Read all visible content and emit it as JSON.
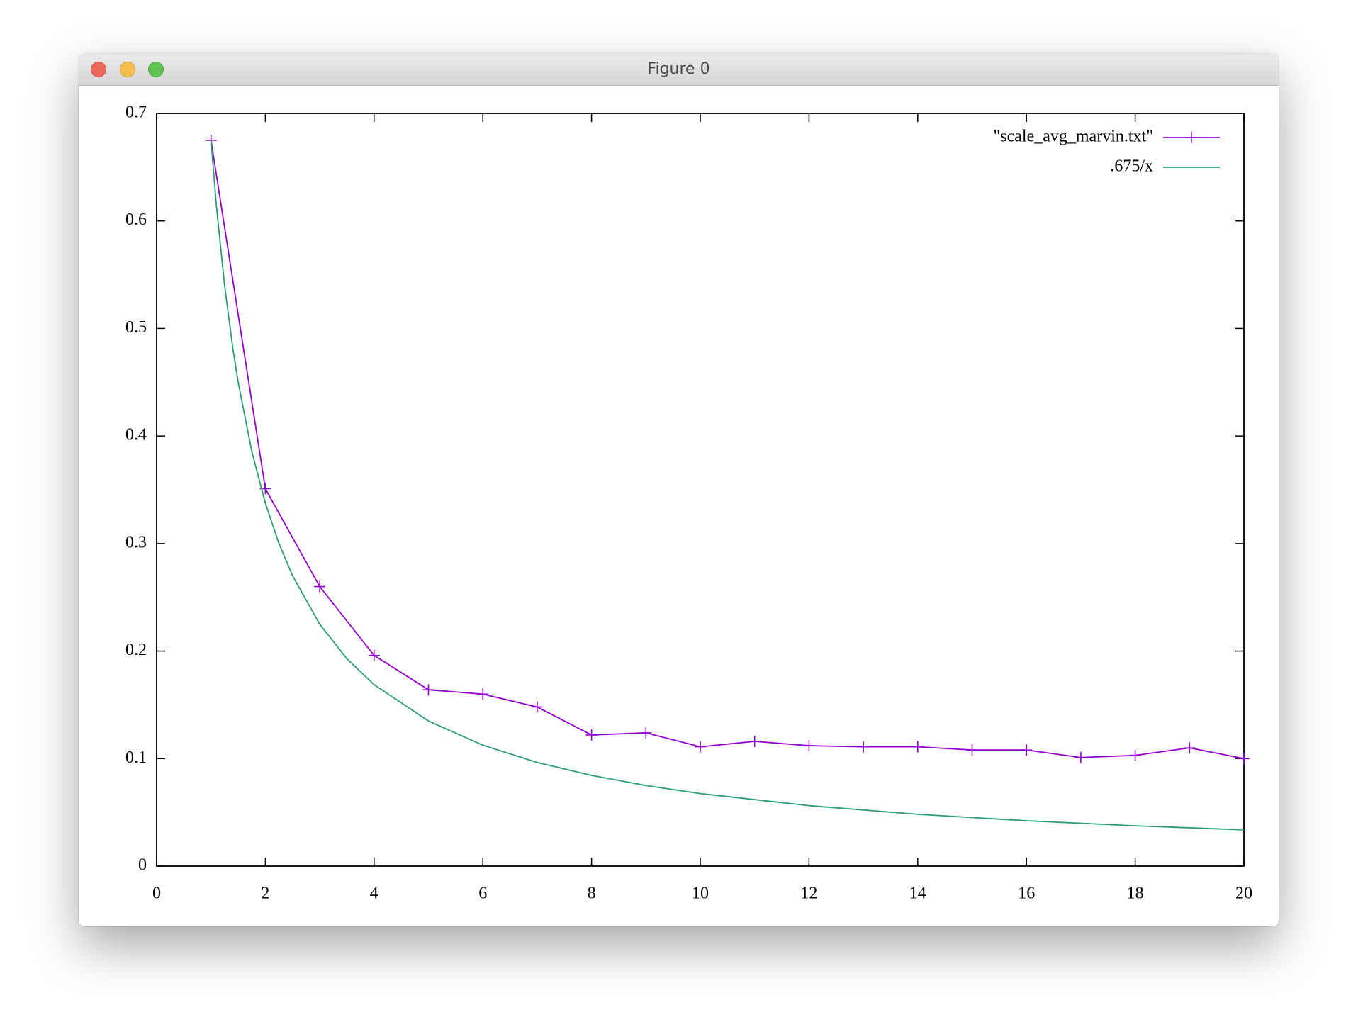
{
  "window_title": "Figure 0",
  "chart_data": {
    "type": "line",
    "xlim": [
      0,
      20
    ],
    "xticks": [
      0,
      2,
      4,
      6,
      8,
      10,
      12,
      14,
      16,
      18,
      20
    ],
    "ylim": [
      0,
      0.7
    ],
    "yticks": [
      0,
      0.1,
      0.2,
      0.3,
      0.4,
      0.5,
      0.6,
      0.7
    ],
    "legend": "top-right",
    "series": [
      {
        "name": "\"scale_avg_marvin.txt\"",
        "color": "#9400d3",
        "markers": true,
        "x": [
          1,
          2,
          3,
          4,
          5,
          6,
          7,
          8,
          9,
          10,
          11,
          12,
          13,
          14,
          15,
          16,
          17,
          18,
          19,
          20
        ],
        "values": [
          0.675,
          0.351,
          0.26,
          0.196,
          0.164,
          0.16,
          0.148,
          0.122,
          0.124,
          0.111,
          0.116,
          0.112,
          0.111,
          0.111,
          0.108,
          0.108,
          0.101,
          0.103,
          0.11,
          0.1
        ]
      },
      {
        "name": ".675/x",
        "color": "#2a9d77",
        "markers": false,
        "x": [
          1,
          1.1,
          1.25,
          1.4,
          1.5,
          1.75,
          2,
          2.25,
          2.5,
          3,
          3.5,
          4,
          5,
          6,
          7,
          8,
          9,
          10,
          12,
          14,
          16,
          18,
          20
        ],
        "values": [
          0.675,
          0.6136,
          0.54,
          0.4821,
          0.45,
          0.3857,
          0.3375,
          0.3,
          0.27,
          0.225,
          0.1929,
          0.16875,
          0.135,
          0.1125,
          0.0964,
          0.0844,
          0.075,
          0.0675,
          0.05625,
          0.0482,
          0.0422,
          0.0375,
          0.03375
        ]
      }
    ]
  }
}
